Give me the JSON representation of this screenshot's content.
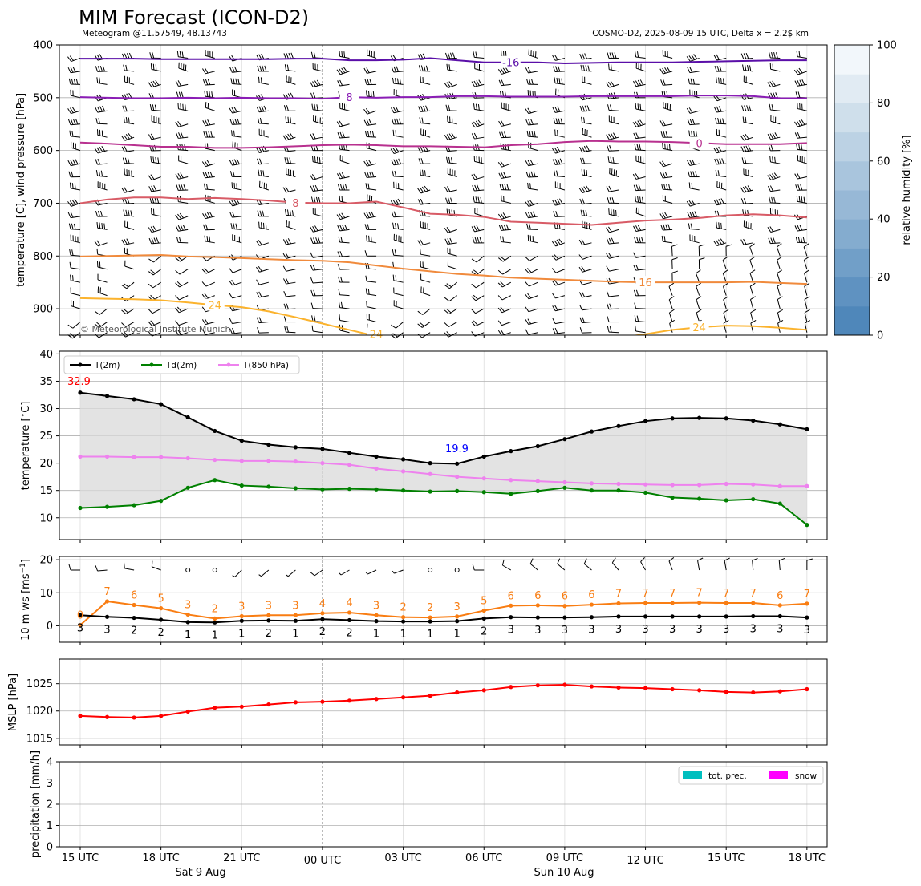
{
  "header": {
    "title": "MIM Forecast (ICON-D2)",
    "subtitle_left": "Meteogram @11.57549, 48.13743",
    "subtitle_right": "COSMO-D2, 2025-08-09 15 UTC, Delta x = 2.2$ km",
    "copyright": "© Meteorological Institute Munich"
  },
  "x_axis": {
    "tick_labels": [
      "15 UTC",
      "18 UTC",
      "21 UTC",
      "00 UTC",
      "03 UTC",
      "06 UTC",
      "09 UTC",
      "12 UTC",
      "15 UTC",
      "18 UTC"
    ],
    "day_labels": [
      "Sat 9 Aug",
      "Sun 10 Aug"
    ],
    "hours_from_start": [
      0,
      1,
      2,
      3,
      4,
      5,
      6,
      7,
      8,
      9,
      10,
      11,
      12,
      13,
      14,
      15,
      16,
      17,
      18,
      19,
      20,
      21,
      22,
      23,
      24,
      25,
      26,
      27
    ]
  },
  "chart_data": [
    {
      "panel": "upper-air",
      "type": "line",
      "ylabel": "temperature [C], wind pressure [hPa]",
      "y_ticks": [
        "400",
        "500",
        "600",
        "700",
        "800",
        "900"
      ],
      "ylim": [
        950,
        400
      ],
      "y_inverted": true,
      "colorbar": {
        "label": "relative humidity [%]",
        "ticks": [
          "0",
          "20",
          "40",
          "60",
          "80",
          "100"
        ],
        "colors": [
          "#4f87ba",
          "#5f92c1",
          "#719fc8",
          "#84accf",
          "#97b8d6",
          "#a9c5dd",
          "#bcd2e4",
          "#cfdfeb",
          "#e1ebf3",
          "#f2f7fb"
        ]
      },
      "series": [
        {
          "name": "-16",
          "color": "#5a0fa8",
          "values": [
            426,
            426,
            426,
            427,
            427,
            427,
            427,
            427,
            426,
            426,
            429,
            429,
            428,
            425,
            429,
            433,
            433,
            433,
            435,
            434,
            433,
            433,
            433,
            432,
            431,
            430,
            429,
            429
          ]
        },
        {
          "name": "-8",
          "color": "#8a1db5",
          "values": [
            499,
            500,
            501,
            501,
            500,
            501,
            500,
            501,
            501,
            502,
            499,
            500,
            499,
            499,
            497,
            497,
            498,
            498,
            498,
            497,
            497,
            497,
            497,
            496,
            496,
            497,
            501,
            501
          ]
        },
        {
          "name": "0",
          "color": "#b8308f",
          "values": [
            585,
            587,
            590,
            593,
            593,
            595,
            595,
            594,
            592,
            590,
            589,
            590,
            592,
            592,
            593,
            594,
            590,
            588,
            584,
            582,
            583,
            583,
            584,
            586,
            588,
            588,
            588,
            586
          ]
        },
        {
          "name": "8",
          "color": "#d85b66",
          "values": [
            700,
            693,
            689,
            689,
            692,
            690,
            692,
            695,
            699,
            700,
            700,
            697,
            708,
            720,
            722,
            726,
            735,
            737,
            739,
            741,
            737,
            733,
            731,
            728,
            723,
            721,
            723,
            727
          ]
        },
        {
          "name": "16",
          "color": "#f08a3c",
          "values": [
            801,
            800,
            799,
            798,
            801,
            802,
            804,
            806,
            808,
            809,
            812,
            818,
            824,
            829,
            834,
            837,
            841,
            843,
            845,
            847,
            849,
            850,
            850,
            850,
            850,
            849,
            851,
            853
          ]
        },
        {
          "name": "24",
          "color": "#fbb32e",
          "values": [
            880,
            881,
            882,
            884,
            888,
            893,
            897,
            905,
            916,
            928,
            940,
            952,
            958,
            962,
            963,
            963,
            962,
            961,
            961,
            960,
            955,
            948,
            940,
            935,
            932,
            933,
            936,
            940
          ]
        }
      ],
      "contour_labels": [
        "-16",
        "8",
        "0",
        "8",
        "16",
        "24",
        "24",
        "24"
      ]
    },
    {
      "panel": "temperature",
      "type": "line",
      "ylabel": "temperature [$^\\circ$C]",
      "ylim": [
        6,
        40.5
      ],
      "y_ticks": [
        "10",
        "15",
        "20",
        "25",
        "30",
        "35",
        "40"
      ],
      "legend": [
        "T(2m)",
        "Td(2m)",
        "T(850 hPa)"
      ],
      "annotations": [
        "32.9",
        "19.9"
      ],
      "series": [
        {
          "name": "T(2m)",
          "color": "#000000",
          "values": [
            32.9,
            32.3,
            31.7,
            30.8,
            28.4,
            25.9,
            24.1,
            23.4,
            22.9,
            22.6,
            21.9,
            21.2,
            20.7,
            20.0,
            19.9,
            21.2,
            22.2,
            23.1,
            24.4,
            25.8,
            26.8,
            27.7,
            28.2,
            28.3,
            28.2,
            27.8,
            27.1,
            26.2
          ]
        },
        {
          "name": "Td(2m)",
          "color": "#008000",
          "values": [
            11.8,
            12.0,
            12.3,
            13.1,
            15.5,
            16.9,
            15.9,
            15.7,
            15.4,
            15.2,
            15.3,
            15.2,
            15.0,
            14.8,
            14.9,
            14.7,
            14.4,
            14.9,
            15.5,
            15.0,
            15.0,
            14.6,
            13.7,
            13.5,
            13.2,
            13.4,
            12.6,
            8.7
          ]
        },
        {
          "name": "T(850 hPa)",
          "color": "#ee82ee",
          "values": [
            21.2,
            21.2,
            21.1,
            21.1,
            20.9,
            20.6,
            20.4,
            20.4,
            20.3,
            20.0,
            19.7,
            19.0,
            18.5,
            18.0,
            17.5,
            17.2,
            16.9,
            16.7,
            16.5,
            16.3,
            16.2,
            16.1,
            16.0,
            16.0,
            16.2,
            16.1,
            15.8,
            15.8
          ]
        }
      ]
    },
    {
      "panel": "wind10m",
      "type": "line",
      "ylabel": "10 m ws [ms$^{-1}$]",
      "ylim": [
        -5,
        21
      ],
      "y_ticks": [
        "0",
        "10",
        "20"
      ],
      "series": [
        {
          "name": "mean",
          "color": "#000000",
          "values": [
            3.2,
            2.7,
            2.4,
            1.8,
            1.1,
            1.0,
            1.5,
            1.6,
            1.5,
            2.0,
            1.7,
            1.4,
            1.3,
            1.3,
            1.4,
            2.2,
            2.6,
            2.5,
            2.5,
            2.6,
            2.8,
            2.8,
            2.8,
            2.8,
            2.8,
            2.9,
            2.9,
            2.5
          ]
        },
        {
          "name": "gust",
          "color": "#f97d12",
          "values": [
            0.2,
            7.4,
            6.3,
            5.3,
            3.4,
            2.2,
            2.9,
            3.2,
            3.2,
            3.8,
            4.0,
            3.2,
            2.6,
            2.5,
            2.8,
            4.6,
            6.1,
            6.2,
            6.0,
            6.4,
            6.8,
            6.9,
            6.9,
            7.0,
            6.9,
            6.9,
            6.2,
            6.7
          ]
        }
      ],
      "mean_labels": [
        "3",
        "3",
        "2",
        "2",
        "1",
        "1",
        "1",
        "2",
        "1",
        "2",
        "2",
        "1",
        "1",
        "1",
        "1",
        "2",
        "3",
        "3",
        "3",
        "3",
        "3",
        "3",
        "3",
        "3",
        "3",
        "3",
        "3",
        "3"
      ],
      "gust_labels": [
        "0",
        "7",
        "6",
        "5",
        "3",
        "2",
        "3",
        "3",
        "3",
        "4",
        "4",
        "3",
        "2",
        "2",
        "3",
        "5",
        "6",
        "6",
        "6",
        "6",
        "7",
        "7",
        "7",
        "7",
        "7",
        "7",
        "6",
        "7"
      ],
      "wind_dirs": [
        270,
        265,
        280,
        290,
        0,
        0,
        225,
        230,
        230,
        235,
        240,
        245,
        250,
        0,
        0,
        270,
        300,
        310,
        310,
        310,
        320,
        330,
        340,
        350,
        350,
        355,
        355,
        360
      ],
      "wind_speed_kt": [
        6,
        5,
        5,
        4,
        0,
        0,
        3,
        3,
        3,
        4,
        3,
        3,
        3,
        0,
        0,
        4,
        5,
        5,
        5,
        5,
        5,
        5,
        5,
        5,
        5,
        6,
        6,
        5
      ]
    },
    {
      "panel": "mslp",
      "type": "line",
      "ylabel": "MSLP [hPa]",
      "ylim": [
        1013.8,
        1029.5
      ],
      "y_ticks": [
        "1015",
        "1020",
        "1025"
      ],
      "series": [
        {
          "name": "MSLP",
          "color": "#ff0000",
          "values": [
            1019.1,
            1018.9,
            1018.8,
            1019.1,
            1019.9,
            1020.6,
            1020.8,
            1021.2,
            1021.6,
            1021.7,
            1021.9,
            1022.2,
            1022.5,
            1022.8,
            1023.4,
            1023.8,
            1024.4,
            1024.7,
            1024.8,
            1024.5,
            1024.3,
            1024.2,
            1024.0,
            1023.8,
            1023.5,
            1023.4,
            1023.6,
            1024.0
          ]
        }
      ]
    },
    {
      "panel": "precipitation",
      "type": "bar",
      "ylabel": "precipitation [mm/h]",
      "ylim": [
        0,
        4
      ],
      "y_ticks": [
        "0",
        "1",
        "2",
        "3",
        "4"
      ],
      "legend": [
        "tot. prec.",
        "snow"
      ],
      "legend_colors": [
        "#00bfbf",
        "#ff00ff"
      ],
      "series": [
        {
          "name": "tot. prec.",
          "values": [
            0,
            0,
            0,
            0,
            0,
            0,
            0,
            0,
            0,
            0,
            0,
            0,
            0,
            0,
            0,
            0,
            0,
            0,
            0,
            0,
            0,
            0,
            0,
            0,
            0,
            0,
            0,
            0
          ]
        },
        {
          "name": "snow",
          "values": [
            0,
            0,
            0,
            0,
            0,
            0,
            0,
            0,
            0,
            0,
            0,
            0,
            0,
            0,
            0,
            0,
            0,
            0,
            0,
            0,
            0,
            0,
            0,
            0,
            0,
            0,
            0,
            0
          ]
        }
      ]
    }
  ]
}
